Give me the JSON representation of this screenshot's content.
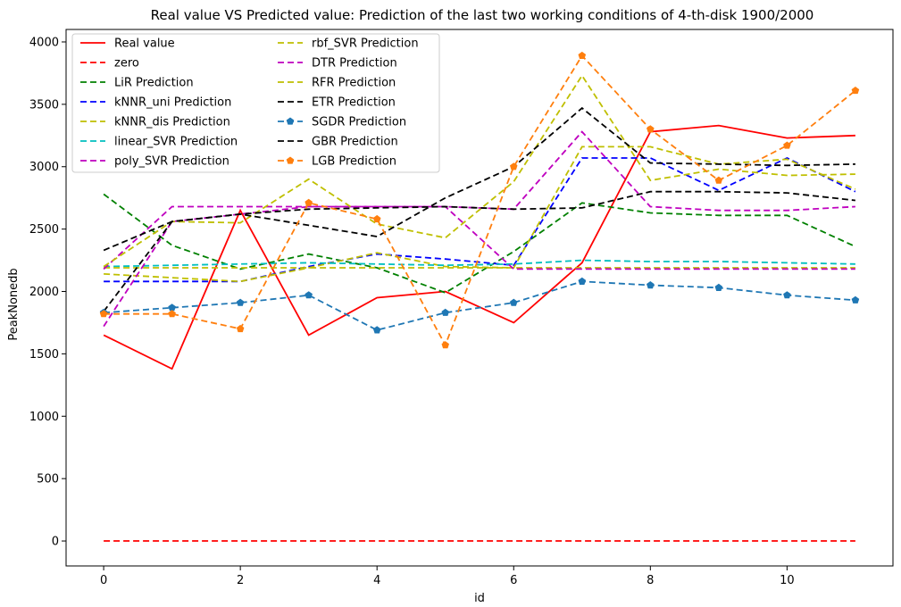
{
  "chart_data": {
    "type": "line",
    "title": "Real value VS Predicted value: Prediction of the last two working conditions of 4-th-disk 1900/2000",
    "xlabel": "id",
    "ylabel": "PeakNonedb",
    "xlim": [
      -0.55,
      11.55
    ],
    "ylim": [
      -200,
      4100
    ],
    "xticks": [
      0,
      2,
      4,
      6,
      8,
      10
    ],
    "xtick_labels": [
      "0",
      "2",
      "4",
      "6",
      "8",
      "10"
    ],
    "yticks": [
      0,
      500,
      1000,
      1500,
      2000,
      2500,
      3000,
      3500,
      4000
    ],
    "ytick_labels": [
      "0",
      "500",
      "1000",
      "1500",
      "2000",
      "2500",
      "3000",
      "3500",
      "4000"
    ],
    "grid": false,
    "legend_position": "top-left",
    "x": [
      0,
      1,
      2,
      3,
      4,
      5,
      6,
      7,
      8,
      9,
      10,
      11
    ],
    "series": [
      {
        "name": "Real value",
        "color": "#ff0000",
        "style": "solid",
        "marker": "none",
        "values": [
          1650,
          1380,
          2650,
          1650,
          1950,
          2000,
          1750,
          2230,
          3280,
          3330,
          3230,
          3250
        ]
      },
      {
        "name": "zero",
        "color": "#ff0000",
        "style": "dashed",
        "marker": "none",
        "values": [
          0,
          0,
          0,
          0,
          0,
          0,
          0,
          0,
          0,
          0,
          0,
          0
        ]
      },
      {
        "name": "LiR Prediction",
        "color": "#008000",
        "style": "dashed",
        "marker": "none",
        "values": [
          2780,
          2370,
          2180,
          2300,
          2190,
          1990,
          2320,
          2710,
          2630,
          2610,
          2610,
          2360
        ]
      },
      {
        "name": "kNNR_uni Prediction",
        "color": "#0000ff",
        "style": "dashed",
        "marker": "none",
        "values": [
          2080,
          2080,
          2080,
          2200,
          2300,
          2260,
          2210,
          3070,
          3070,
          2810,
          3070,
          2800
        ]
      },
      {
        "name": "kNNR_dis Prediction",
        "color": "#bfbf00",
        "style": "dashed",
        "marker": "none",
        "values": [
          2140,
          2110,
          2080,
          2190,
          2310,
          2200,
          2190,
          3160,
          3160,
          3020,
          3060,
          2820
        ]
      },
      {
        "name": "linear_SVR Prediction",
        "color": "#00bfbf",
        "style": "dashed",
        "marker": "none",
        "values": [
          2200,
          2210,
          2220,
          2230,
          2220,
          2210,
          2220,
          2250,
          2240,
          2240,
          2230,
          2220
        ]
      },
      {
        "name": "poly_SVR Prediction",
        "color": "#bf00bf",
        "style": "dashed",
        "marker": "none",
        "values": [
          1720,
          2560,
          2620,
          2680,
          2680,
          2680,
          2660,
          3280,
          2680,
          2650,
          2650,
          2680
        ]
      },
      {
        "name": "rbf_SVR Prediction",
        "color": "#bfbf00",
        "style": "dashed",
        "marker": "none",
        "values": [
          2190,
          2190,
          2190,
          2190,
          2190,
          2190,
          2190,
          2190,
          2190,
          2190,
          2190,
          2190
        ]
      },
      {
        "name": "DTR Prediction",
        "color": "#bf00bf",
        "style": "dashed",
        "marker": "none",
        "values": [
          2180,
          2680,
          2680,
          2680,
          2680,
          2680,
          2180,
          2180,
          2180,
          2180,
          2180,
          2180
        ]
      },
      {
        "name": "RFR Prediction",
        "color": "#bfbf00",
        "style": "dashed",
        "marker": "none",
        "values": [
          2200,
          2560,
          2550,
          2900,
          2540,
          2430,
          2880,
          3730,
          2890,
          2980,
          2930,
          2940
        ]
      },
      {
        "name": "ETR Prediction",
        "color": "#000000",
        "style": "dashed",
        "marker": "none",
        "values": [
          1840,
          2560,
          2620,
          2660,
          2670,
          2680,
          2660,
          2670,
          2800,
          2800,
          2790,
          2730
        ]
      },
      {
        "name": "SGDR Prediction",
        "color": "#1f77b4",
        "style": "dashed",
        "marker": "pentagon",
        "values": [
          1830,
          1870,
          1910,
          1970,
          1690,
          1830,
          1910,
          2080,
          2050,
          2030,
          1970,
          1930
        ]
      },
      {
        "name": "GBR Prediction",
        "color": "#000000",
        "style": "dashed",
        "marker": "none",
        "values": [
          2330,
          2560,
          2620,
          2530,
          2440,
          2750,
          3000,
          3470,
          3030,
          3020,
          3010,
          3020
        ]
      },
      {
        "name": "LGB Prediction",
        "color": "#ff7f0e",
        "style": "dashed",
        "marker": "pentagon",
        "values": [
          1820,
          1820,
          1700,
          2710,
          2580,
          1570,
          3000,
          3890,
          3300,
          2890,
          3170,
          3610
        ]
      }
    ]
  }
}
